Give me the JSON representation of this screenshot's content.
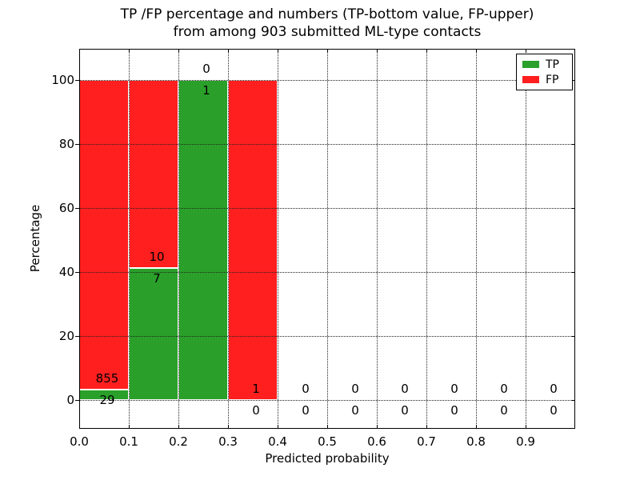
{
  "title": {
    "line1": "TP /FP percentage and numbers (TP-bottom value, FP-upper)",
    "line2": "from among 903 submitted ML-type contacts"
  },
  "axes": {
    "xlabel": "Predicted probability",
    "ylabel": "Percentage",
    "x_tick_labels": [
      "0.0",
      "0.1",
      "0.2",
      "0.3",
      "0.4",
      "0.5",
      "0.6",
      "0.7",
      "0.8",
      "0.9"
    ],
    "x_tick_values": [
      0.0,
      0.1,
      0.2,
      0.3,
      0.4,
      0.5,
      0.6,
      0.7,
      0.8,
      0.9
    ],
    "y_tick_labels": [
      "0",
      "20",
      "40",
      "60",
      "80",
      "100"
    ],
    "y_tick_values": [
      0,
      20,
      40,
      60,
      80,
      100
    ],
    "grid": "dotted, drawn above bars"
  },
  "legend": {
    "items": [
      {
        "label": "TP",
        "color": "#2aa02a"
      },
      {
        "label": "FP",
        "color": "#ff1f1f"
      }
    ]
  },
  "chart_data": {
    "type": "bar",
    "stacked": true,
    "title": "TP /FP percentage and numbers (TP-bottom value, FP-upper) from among 903 submitted ML-type contacts",
    "xlabel": "Predicted probability",
    "ylabel": "Percentage",
    "total_contacts": 903,
    "bin_width": 0.1,
    "bin_starts": [
      0.0,
      0.1,
      0.2,
      0.3,
      0.4,
      0.5,
      0.6,
      0.7,
      0.8,
      0.9
    ],
    "bin_centers": [
      0.05,
      0.15,
      0.25,
      0.35,
      0.45,
      0.55,
      0.65,
      0.75,
      0.85,
      0.95
    ],
    "series": [
      {
        "name": "TP",
        "color": "#2aa02a",
        "counts": [
          29,
          7,
          1,
          0,
          0,
          0,
          0,
          0,
          0,
          0
        ],
        "percent": [
          3.28,
          41.18,
          100,
          0,
          0,
          0,
          0,
          0,
          0,
          0
        ]
      },
      {
        "name": "FP",
        "color": "#ff1f1f",
        "counts": [
          855,
          10,
          0,
          1,
          0,
          0,
          0,
          0,
          0,
          0
        ],
        "percent": [
          96.72,
          58.82,
          0,
          100,
          0,
          0,
          0,
          0,
          0,
          0
        ]
      }
    ],
    "upper_labels_fp": [
      "855",
      "10",
      "0",
      "1",
      "0",
      "0",
      "0",
      "0",
      "0",
      "0"
    ],
    "lower_labels_tp": [
      "29",
      "7",
      "1",
      "0",
      "0",
      "0",
      "0",
      "0",
      "0",
      "0"
    ],
    "xlim": [
      0.0,
      1.0
    ],
    "ylim_percent": [
      0,
      100
    ],
    "legend_position": "upper right"
  }
}
